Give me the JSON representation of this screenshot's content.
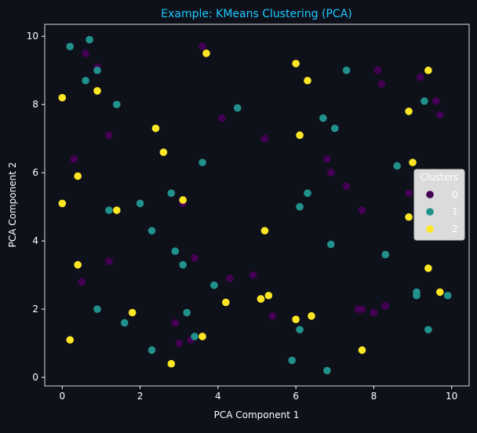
{
  "colors": {
    "background": "#0f111a",
    "axes_frame": "#d9d9d9",
    "text": "#ffffff",
    "title": "#1ec8ff",
    "cluster_0": "#440154",
    "cluster_1": "#21918c",
    "cluster_2": "#fde725",
    "legend_bg": "#f2f2f2"
  },
  "chart_data": {
    "type": "scatter",
    "title": "Example: KMeans Clustering (PCA)",
    "xlabel": "PCA Component 1",
    "ylabel": "PCA Component 2",
    "xlim": [
      -0.45,
      10.45
    ],
    "ylim": [
      -0.25,
      10.35
    ],
    "xticks": [
      "0",
      "2",
      "4",
      "6",
      "8",
      "10"
    ],
    "yticks": [
      "0",
      "2",
      "4",
      "6",
      "8",
      "10"
    ],
    "grid": false,
    "legend": {
      "title": "Clusters",
      "placement": "right",
      "entries": [
        "0",
        "1",
        "2"
      ]
    },
    "series": [
      {
        "name": "0",
        "x": [
          0.6,
          0.9,
          0.3,
          1.2,
          0.3,
          0.5,
          1.2,
          2.6,
          3.1,
          3.6,
          4.1,
          5.2,
          6.8,
          6.9,
          7.3,
          7.7,
          7.6,
          8.1,
          8.2,
          8.0,
          8.3,
          9.2,
          9.6,
          9.7,
          8.9,
          3.3,
          3.4,
          3.0,
          2.9,
          4.3,
          4.9,
          5.4,
          7.7
        ],
        "y": [
          9.5,
          9.1,
          6.4,
          7.1,
          6.4,
          2.8,
          3.4,
          6.6,
          5.1,
          9.7,
          7.6,
          7.0,
          6.4,
          6.0,
          5.6,
          4.9,
          2.0,
          9.0,
          8.6,
          1.9,
          2.1,
          8.8,
          8.1,
          7.7,
          5.4,
          1.1,
          3.5,
          1.0,
          1.6,
          2.9,
          3.0,
          1.8,
          2.0
        ]
      },
      {
        "name": "1",
        "x": [
          0.2,
          0.7,
          0.9,
          0.6,
          1.4,
          1.2,
          2.0,
          2.3,
          2.8,
          2.9,
          3.1,
          3.6,
          3.9,
          4.5,
          6.1,
          6.3,
          6.7,
          7.0,
          7.3,
          6.9,
          8.3,
          8.6,
          9.1,
          9.1,
          9.3,
          9.4,
          9.9,
          3.2,
          3.4,
          2.3,
          1.6,
          0.9,
          5.9,
          6.1,
          6.8
        ],
        "y": [
          9.7,
          9.9,
          9.0,
          8.7,
          8.0,
          4.9,
          5.1,
          4.3,
          5.4,
          3.7,
          3.3,
          6.3,
          2.7,
          7.9,
          5.0,
          5.4,
          7.6,
          7.3,
          9.0,
          3.9,
          3.6,
          6.2,
          2.5,
          2.4,
          8.1,
          1.4,
          2.4,
          1.9,
          1.2,
          0.8,
          1.6,
          2.0,
          0.5,
          1.4,
          0.2
        ]
      },
      {
        "name": "2",
        "x": [
          0.0,
          0.9,
          2.4,
          3.7,
          2.6,
          0.0,
          0.4,
          1.4,
          3.1,
          0.4,
          1.8,
          4.2,
          5.1,
          5.2,
          5.3,
          3.6,
          2.8,
          0.2,
          6.0,
          6.3,
          6.1,
          6.0,
          6.4,
          8.9,
          9.0,
          9.4,
          9.4,
          9.7,
          8.9,
          7.7,
          5.1
        ],
        "y": [
          8.2,
          8.4,
          7.3,
          9.5,
          6.6,
          5.1,
          5.9,
          4.9,
          5.2,
          3.3,
          1.9,
          2.2,
          2.3,
          4.3,
          2.4,
          1.2,
          0.4,
          1.1,
          9.2,
          8.7,
          7.1,
          1.7,
          1.8,
          7.8,
          6.3,
          9.0,
          3.2,
          2.5,
          4.7,
          0.8,
          2.3
        ]
      }
    ]
  }
}
